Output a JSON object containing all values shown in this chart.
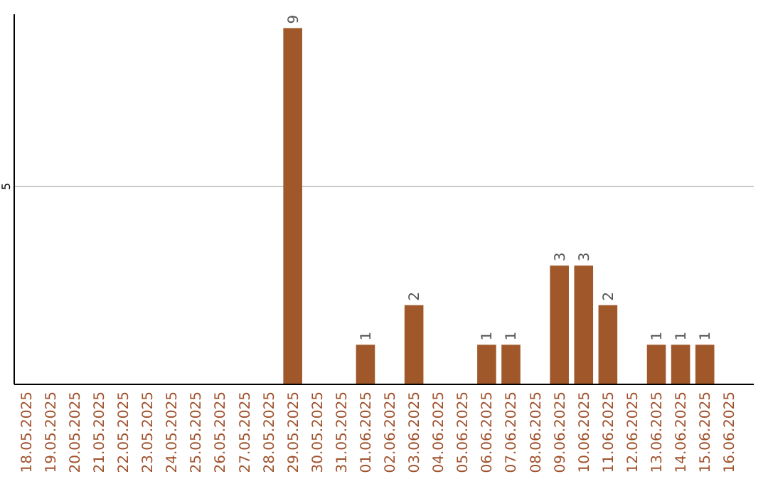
{
  "chart_data": {
    "type": "bar",
    "categories": [
      "18.05.2025",
      "19.05.2025",
      "20.05.2025",
      "21.05.2025",
      "22.05.2025",
      "23.05.2025",
      "24.05.2025",
      "25.05.2025",
      "26.05.2025",
      "27.05.2025",
      "28.05.2025",
      "29.05.2025",
      "30.05.2025",
      "31.05.2025",
      "01.06.2025",
      "02.06.2025",
      "03.06.2025",
      "04.06.2025",
      "05.06.2025",
      "06.06.2025",
      "07.06.2025",
      "08.06.2025",
      "09.06.2025",
      "10.06.2025",
      "11.06.2025",
      "12.06.2025",
      "13.06.2025",
      "14.06.2025",
      "15.06.2025",
      "16.06.2025"
    ],
    "values": [
      null,
      null,
      null,
      null,
      null,
      null,
      null,
      null,
      null,
      null,
      null,
      9,
      null,
      null,
      1,
      null,
      2,
      null,
      null,
      1,
      1,
      null,
      3,
      3,
      2,
      null,
      1,
      1,
      1,
      null
    ],
    "color": "#a0582a",
    "ylim": [
      0,
      9.35
    ],
    "yticks": [
      5
    ],
    "grid": "y",
    "data_labels": true
  }
}
